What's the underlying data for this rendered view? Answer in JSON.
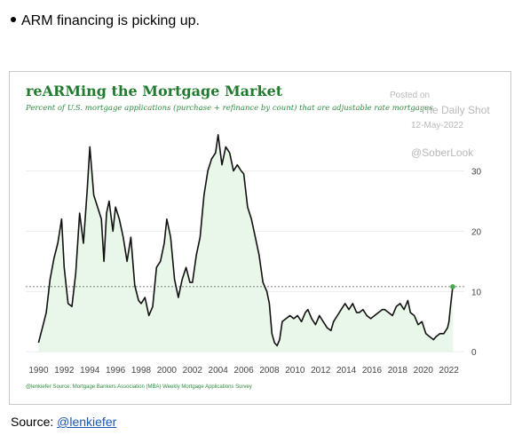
{
  "post": {
    "bullet_text": "ARM financing is picking up.",
    "source_label": "Source:",
    "source_link": "@lenkiefer"
  },
  "watermark": {
    "posted_on": "Posted on",
    "source": "The Daily Shot",
    "date": "12-May-2022",
    "handle": "@SoberLook"
  },
  "colors": {
    "line": "#111111",
    "area_fill": "#e8f7e8",
    "accent_green": "#2e8b3e",
    "reference_line": "#555555",
    "grid": "#ececec",
    "endpoint_dot": "#3fae4a"
  },
  "chart_data": {
    "type": "area",
    "title": "reARMing the Mortgage Market",
    "subtitle": "Percent of U.S. mortgage applications (purchase + refinance by count) that are adjustable rate mortgages",
    "footnote": "@lenkiefer Source: Mortgage Bankers Association (MBA) Weekly Mortgage Applications Survey",
    "xlabel": "",
    "ylabel": "",
    "x_ticks": [
      "1990",
      "1992",
      "1994",
      "1996",
      "1998",
      "2000",
      "2002",
      "2004",
      "2006",
      "2008",
      "2010",
      "2012",
      "2014",
      "2016",
      "2018",
      "2020",
      "2022"
    ],
    "y_ticks": [
      "0",
      "10",
      "20",
      "30"
    ],
    "xlim": [
      1989,
      2023.2
    ],
    "ylim": [
      -1,
      37
    ],
    "y_axis_side": "right",
    "grid": "horizontal",
    "reference_line": {
      "y": 10.8,
      "style": "dashed"
    },
    "series": [
      {
        "x": [
          1990.0,
          1990.3,
          1990.6,
          1990.9,
          1991.2,
          1991.5,
          1991.8,
          1992.0,
          1992.3,
          1992.6,
          1992.9,
          1993.2,
          1993.5,
          1993.8,
          1994.0,
          1994.3,
          1994.6,
          1994.9,
          1995.1,
          1995.3,
          1995.5,
          1995.8,
          1996.0,
          1996.3,
          1996.6,
          1996.9,
          1997.2,
          1997.5,
          1997.8,
          1998.0,
          1998.3,
          1998.6,
          1998.9,
          1999.2,
          1999.5,
          1999.8,
          2000.0,
          2000.3,
          2000.6,
          2000.9,
          2001.2,
          2001.5,
          2001.8,
          2002.0,
          2002.3,
          2002.6,
          2002.9,
          2003.2,
          2003.5,
          2003.8,
          2004.0,
          2004.3,
          2004.6,
          2004.9,
          2005.2,
          2005.5,
          2005.8,
          2006.0,
          2006.3,
          2006.6,
          2006.9,
          2007.2,
          2007.5,
          2007.8,
          2008.0,
          2008.2,
          2008.4,
          2008.6,
          2008.8,
          2009.0,
          2009.3,
          2009.6,
          2009.9,
          2010.2,
          2010.5,
          2010.8,
          2011.0,
          2011.3,
          2011.6,
          2011.9,
          2012.2,
          2012.5,
          2012.8,
          2013.0,
          2013.3,
          2013.6,
          2013.9,
          2014.2,
          2014.5,
          2014.8,
          2015.0,
          2015.3,
          2015.6,
          2015.9,
          2016.2,
          2016.5,
          2016.8,
          2017.0,
          2017.3,
          2017.6,
          2017.9,
          2018.2,
          2018.5,
          2018.8,
          2019.0,
          2019.3,
          2019.6,
          2019.9,
          2020.2,
          2020.5,
          2020.8,
          2021.0,
          2021.3,
          2021.6,
          2021.9,
          2022.0,
          2022.15,
          2022.3
        ],
        "values": [
          1.5,
          4,
          6.5,
          12,
          15.5,
          18,
          22,
          14,
          8,
          7.5,
          13,
          23,
          18,
          27,
          34,
          26,
          24,
          22,
          15,
          23,
          25,
          20,
          24,
          22,
          19,
          15,
          19,
          11,
          8.5,
          8,
          9,
          6,
          7.5,
          14,
          15,
          18,
          22,
          19,
          12,
          9,
          12,
          14,
          11.5,
          11.5,
          16,
          19,
          26,
          30,
          32,
          33,
          36,
          31,
          34,
          33,
          30,
          31,
          30,
          29.5,
          24,
          22,
          19,
          16,
          11.5,
          10,
          8,
          3,
          1.5,
          1,
          2,
          5,
          5.5,
          6,
          5.5,
          6,
          5,
          6.5,
          7,
          5.5,
          4.5,
          6,
          5,
          4,
          3.5,
          5,
          6,
          7,
          8,
          7,
          8,
          6.5,
          6.5,
          7,
          6,
          5.5,
          6,
          6.5,
          7,
          7,
          6.5,
          6,
          7.5,
          8,
          7,
          8.5,
          6.5,
          6,
          4.5,
          5,
          3,
          2.5,
          2,
          2.5,
          3,
          3,
          4,
          5,
          8,
          10.8
        ]
      }
    ]
  }
}
